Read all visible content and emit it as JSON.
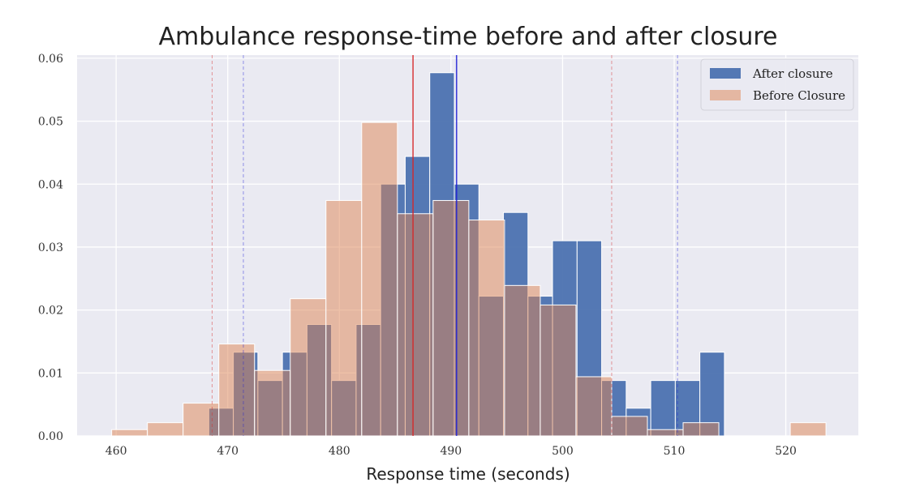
{
  "chart_data": {
    "type": "bar",
    "title": "Ambulance response-time before and after closure",
    "xlabel": "Response time (seconds)",
    "ylabel": "",
    "xlim": [
      456.5,
      526.5
    ],
    "ylim": [
      0,
      0.0605
    ],
    "xticks": [
      460,
      470,
      480,
      490,
      500,
      510,
      520
    ],
    "xtick_labels": [
      "460",
      "470",
      "480",
      "490",
      "500",
      "510",
      "520"
    ],
    "yticks": [
      0,
      0.01,
      0.02,
      0.03,
      0.04,
      0.05,
      0.06
    ],
    "ytick_labels": [
      "0.00",
      "0.01",
      "0.02",
      "0.03",
      "0.04",
      "0.05",
      "0.06"
    ],
    "grid": true,
    "legend_position": "top-right",
    "series": [
      {
        "name": "After closure",
        "color": "#4c72b0",
        "opacity": 0.95,
        "bins": [
          {
            "x0": 468.3,
            "x1": 470.5,
            "value": 0.0044
          },
          {
            "x0": 470.5,
            "x1": 472.7,
            "value": 0.0133
          },
          {
            "x0": 472.7,
            "x1": 474.9,
            "value": 0.0088
          },
          {
            "x0": 474.9,
            "x1": 477.1,
            "value": 0.0133
          },
          {
            "x0": 477.1,
            "x1": 479.3,
            "value": 0.0177
          },
          {
            "x0": 479.3,
            "x1": 481.5,
            "value": 0.0088
          },
          {
            "x0": 481.5,
            "x1": 483.7,
            "value": 0.0177
          },
          {
            "x0": 483.7,
            "x1": 485.9,
            "value": 0.04
          },
          {
            "x0": 485.9,
            "x1": 488.1,
            "value": 0.0444
          },
          {
            "x0": 488.1,
            "x1": 490.3,
            "value": 0.0577
          },
          {
            "x0": 490.3,
            "x1": 492.5,
            "value": 0.04
          },
          {
            "x0": 492.5,
            "x1": 494.7,
            "value": 0.0222
          },
          {
            "x0": 494.7,
            "x1": 496.9,
            "value": 0.0355
          },
          {
            "x0": 496.9,
            "x1": 499.1,
            "value": 0.0222
          },
          {
            "x0": 499.1,
            "x1": 501.3,
            "value": 0.031
          },
          {
            "x0": 501.3,
            "x1": 503.5,
            "value": 0.031
          },
          {
            "x0": 503.5,
            "x1": 505.7,
            "value": 0.0088
          },
          {
            "x0": 505.7,
            "x1": 507.9,
            "value": 0.0044
          },
          {
            "x0": 507.9,
            "x1": 510.1,
            "value": 0.0088
          },
          {
            "x0": 510.1,
            "x1": 512.3,
            "value": 0.0088
          },
          {
            "x0": 512.3,
            "x1": 514.5,
            "value": 0.0133
          }
        ]
      },
      {
        "name": "Before Closure",
        "color": "#dd8452",
        "opacity": 0.5,
        "bins": [
          {
            "x0": 459.6,
            "x1": 462.8,
            "value": 0.001
          },
          {
            "x0": 462.8,
            "x1": 466.0,
            "value": 0.0021
          },
          {
            "x0": 466.0,
            "x1": 469.2,
            "value": 0.0052
          },
          {
            "x0": 469.2,
            "x1": 472.4,
            "value": 0.0146
          },
          {
            "x0": 472.4,
            "x1": 475.6,
            "value": 0.0104
          },
          {
            "x0": 475.6,
            "x1": 478.8,
            "value": 0.0218
          },
          {
            "x0": 478.8,
            "x1": 482.0,
            "value": 0.0374
          },
          {
            "x0": 482.0,
            "x1": 485.2,
            "value": 0.0498
          },
          {
            "x0": 485.2,
            "x1": 488.4,
            "value": 0.0353
          },
          {
            "x0": 488.4,
            "x1": 491.6,
            "value": 0.0374
          },
          {
            "x0": 491.6,
            "x1": 494.8,
            "value": 0.0343
          },
          {
            "x0": 494.8,
            "x1": 498.0,
            "value": 0.0239
          },
          {
            "x0": 498.0,
            "x1": 501.2,
            "value": 0.0208
          },
          {
            "x0": 501.2,
            "x1": 504.4,
            "value": 0.0094
          },
          {
            "x0": 504.4,
            "x1": 507.6,
            "value": 0.0031
          },
          {
            "x0": 507.6,
            "x1": 510.8,
            "value": 0.001
          },
          {
            "x0": 510.8,
            "x1": 514.0,
            "value": 0.0021
          },
          {
            "x0": 514.0,
            "x1": 517.2,
            "value": 0.0
          },
          {
            "x0": 517.2,
            "x1": 520.4,
            "value": 0.0
          },
          {
            "x0": 520.4,
            "x1": 523.6,
            "value": 0.0021
          }
        ]
      }
    ],
    "reference_lines": [
      {
        "x": 486.6,
        "color": "#d62728",
        "style": "solid"
      },
      {
        "x": 490.5,
        "color": "#1f1fd6",
        "style": "solid"
      },
      {
        "x": 468.6,
        "color": "#d62728",
        "style": "dashed"
      },
      {
        "x": 504.4,
        "color": "#d62728",
        "style": "dashed"
      },
      {
        "x": 471.4,
        "color": "#1f1fd6",
        "style": "dashed"
      },
      {
        "x": 510.3,
        "color": "#1f1fd6",
        "style": "dashed"
      }
    ],
    "colors": {
      "plot_background": "#eaeaf2",
      "grid": "#ffffff",
      "bar_edge": "#ffffff"
    }
  }
}
